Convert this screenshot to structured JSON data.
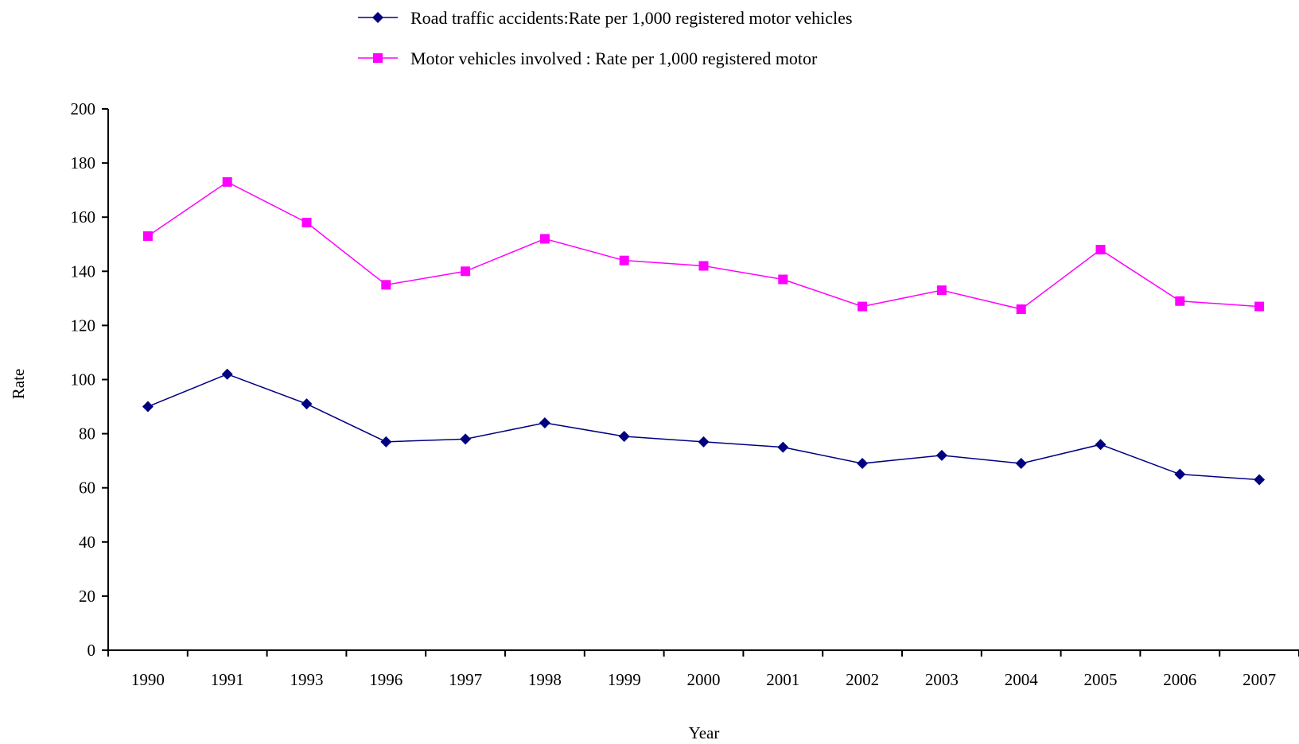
{
  "chart_data": {
    "type": "line",
    "categories": [
      "1990",
      "1991",
      "1993",
      "1996",
      "1997",
      "1998",
      "1999",
      "2000",
      "2001",
      "2002",
      "2003",
      "2004",
      "2005",
      "2006",
      "2007"
    ],
    "series": [
      {
        "name": "Road traffic accidents:Rate per 1,000 registered motor vehicles",
        "color": "#000080",
        "marker": "diamond",
        "values": [
          90,
          102,
          91,
          77,
          78,
          84,
          79,
          77,
          75,
          69,
          72,
          69,
          76,
          65,
          63
        ]
      },
      {
        "name": "Motor vehicles involved : Rate per 1,000 registered motor",
        "color": "#FF00FF",
        "marker": "square",
        "values": [
          153,
          173,
          158,
          135,
          140,
          152,
          144,
          142,
          137,
          127,
          133,
          126,
          148,
          129,
          127
        ]
      }
    ],
    "xlabel": "Year",
    "ylabel": "Rate",
    "ylim": [
      0,
      200
    ],
    "yticks": [
      "0",
      "20",
      "40",
      "60",
      "80",
      "100",
      "120",
      "140",
      "160",
      "180",
      "200"
    ],
    "grid": false,
    "legend_position": "top"
  }
}
